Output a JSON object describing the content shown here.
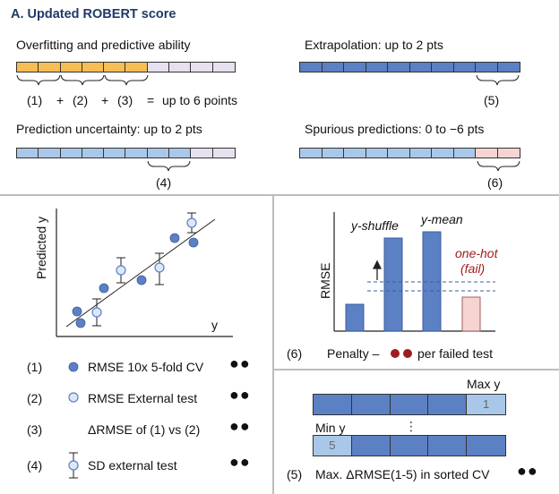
{
  "title": "A. Updated ROBERT score",
  "top": {
    "overfitting": {
      "label": "Overfitting and predictive ability",
      "formula": [
        "(1)",
        "+",
        "(2)",
        "+",
        "(3)",
        "=",
        "up to 6 points"
      ]
    },
    "extrapolation": {
      "label": "Extrapolation: up to 2 pts",
      "marker": "(5)"
    },
    "uncertainty": {
      "label": "Prediction uncertainty: up to 2 pts",
      "marker": "(4)"
    },
    "spurious": {
      "label": "Spurious predictions: 0 to −6 pts",
      "marker": "(6)"
    }
  },
  "colors": {
    "orange": "#f7be55",
    "blue_dark": "#5b80c4",
    "blue_light": "#a9c8e9",
    "lilac": "#e7e0ee",
    "pink": "#f5d4d2",
    "red_dot": "#a01c1c",
    "title": "#1f3a66"
  },
  "scatter": {
    "ylabel": "Predicted y",
    "xlabel": "y"
  },
  "legend": [
    {
      "num": "(1)",
      "text": "RMSE 10x 5-fold CV",
      "icon": "filled-circle-icon"
    },
    {
      "num": "(2)",
      "text": "RMSE External test",
      "icon": "open-circle-icon"
    },
    {
      "num": "(3)",
      "text": "ΔRMSE of (1) vs (2)",
      "icon": ""
    },
    {
      "num": "(4)",
      "text": "SD external test",
      "icon": "errorbar-circle-icon"
    }
  ],
  "rmse_panel": {
    "ylabel": "RMSE",
    "yshuffle": "y-shuffle",
    "ymean": "y-mean",
    "onehot": "one-hot",
    "fail": "(fail)",
    "num": "(6)",
    "penalty_prefix": "Penalty –",
    "penalty_suffix": "per failed test"
  },
  "sorted_panel": {
    "max_label": "Max y",
    "min_label": "Min y",
    "max_value": "1",
    "min_value": "5",
    "ellipsis": "⋮",
    "num": "(5)",
    "text": "Max. ΔRMSE(1-5) in sorted CV"
  }
}
